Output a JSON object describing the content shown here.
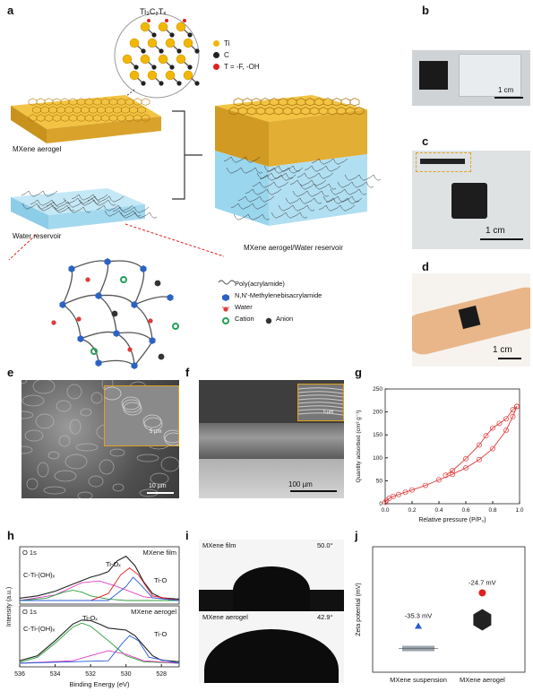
{
  "figure": {
    "panels": {
      "a": {
        "label": "a",
        "formula": "Ti₃C₂Tₓ",
        "legend_top": [
          {
            "text": "Ti",
            "color": "#f2b705"
          },
          {
            "text": "C",
            "color": "#222222"
          },
          {
            "text": "T = -F, -OH",
            "color": "#e02020"
          }
        ],
        "label_aerogel": "MXene aerogel",
        "label_reservoir": "Water reservoir",
        "label_composite": "MXene aerogel/Water reservoir",
        "legend_bottom": [
          {
            "text": "Poly(acrylamide)",
            "icon": "wavy-line-icon"
          },
          {
            "text": "N,N'-Methylenebisacrylamide",
            "icon": "blue-hexagon-icon"
          },
          {
            "text": "Water",
            "icon": "water-molecule-icon"
          },
          {
            "text": "Cation",
            "icon": "green-ring-icon"
          },
          {
            "text": "Anion",
            "icon": "black-circle-icon"
          }
        ]
      },
      "b": {
        "label": "b",
        "scale": "1 cm"
      },
      "c": {
        "label": "c",
        "scale": "1 cm"
      },
      "d": {
        "label": "d",
        "scale": "1 cm"
      },
      "e": {
        "label": "e",
        "scale_main": "10 µm",
        "scale_inset": "5 µm"
      },
      "f": {
        "label": "f",
        "scale_main": "100 µm",
        "scale_inset": "5 µm"
      },
      "g": {
        "label": "g"
      },
      "h": {
        "label": "h",
        "top": {
          "orbital": "O 1s",
          "sample": "MXene film",
          "peaks": [
            "C-Ti-(OH)ₓ",
            "Ti-Oₓ",
            "Ti-O"
          ]
        },
        "bottom": {
          "orbital": "O 1s",
          "sample": "MXene aerogel",
          "peaks": [
            "C-Ti-(OH)ₓ",
            "Ti-Oₓ",
            "Ti-O"
          ]
        }
      },
      "i": {
        "label": "i",
        "top": {
          "sample": "MXene film",
          "angle": "50.0°"
        },
        "bottom": {
          "sample": "MXene aerogel",
          "angle": "42.9°"
        }
      },
      "j": {
        "label": "j"
      }
    }
  },
  "chart_data": [
    {
      "panel": "g",
      "type": "line",
      "xlabel": "Relative pressure (P/P₀)",
      "ylabel": "Quantity adsorbed (cm³ g⁻¹)",
      "xlim": [
        0,
        1.0
      ],
      "ylim": [
        0,
        250
      ],
      "xticks": [
        "0.0",
        "0.2",
        "0.4",
        "0.6",
        "0.8",
        "1.0"
      ],
      "yticks": [
        "0",
        "50",
        "100",
        "150",
        "200",
        "250"
      ],
      "grid": false,
      "color": "#e03a3a",
      "series": [
        {
          "x": [
            0.0,
            0.01,
            0.03,
            0.06,
            0.1,
            0.15,
            0.2,
            0.3,
            0.4,
            0.5,
            0.6,
            0.7,
            0.8,
            0.9,
            0.95,
            0.98
          ],
          "y": [
            3,
            7,
            12,
            16,
            20,
            25,
            30,
            40,
            52,
            64,
            78,
            96,
            120,
            160,
            190,
            212
          ]
        },
        {
          "x": [
            0.98,
            0.95,
            0.9,
            0.85,
            0.8,
            0.75,
            0.7,
            0.6,
            0.5,
            0.45
          ],
          "y": [
            212,
            205,
            185,
            175,
            165,
            148,
            128,
            98,
            72,
            62
          ]
        }
      ]
    },
    {
      "panel": "h",
      "type": "line",
      "xlabel": "Binding Energy (eV)",
      "ylabel": "Intensity (a.u.)",
      "xlim": [
        536,
        527
      ],
      "xticks": [
        "536",
        "534",
        "532",
        "530",
        "528"
      ],
      "subplots": [
        {
          "sample": "MXene film",
          "series": [
            {
              "color": "#222222",
              "x": [
                536,
                535,
                534,
                533,
                532,
                531.5,
                531,
                530.5,
                530,
                529.5,
                529,
                528.5,
                528,
                527
              ],
              "y": [
                0.05,
                0.1,
                0.2,
                0.35,
                0.5,
                0.55,
                0.62,
                0.85,
                0.95,
                0.75,
                0.4,
                0.15,
                0.06,
                0.03
              ]
            },
            {
              "color": "#e040c0",
              "x": [
                536,
                534,
                532.5,
                531.5,
                530.5,
                529,
                527
              ],
              "y": [
                0.0,
                0.12,
                0.38,
                0.42,
                0.3,
                0.08,
                0.0
              ]
            },
            {
              "color": "#2a9d3a",
              "x": [
                536,
                534.5,
                533.5,
                533,
                532.5,
                532,
                531,
                530,
                527
              ],
              "y": [
                0.0,
                0.05,
                0.18,
                0.22,
                0.18,
                0.1,
                0.03,
                0.0,
                0.0
              ]
            },
            {
              "color": "#e02020",
              "x": [
                536,
                532,
                531,
                530.3,
                529.8,
                529.3,
                528.5,
                527
              ],
              "y": [
                0.0,
                0.0,
                0.15,
                0.55,
                0.7,
                0.55,
                0.1,
                0.0
              ]
            },
            {
              "color": "#2a5bd7",
              "x": [
                536,
                531,
                530,
                529.6,
                529.2,
                528.5,
                527
              ],
              "y": [
                0.0,
                0.0,
                0.3,
                0.5,
                0.35,
                0.06,
                0.0
              ]
            }
          ]
        },
        {
          "sample": "MXene aerogel",
          "series": [
            {
              "color": "#222222",
              "x": [
                536,
                535,
                534,
                533,
                532.5,
                532,
                531.5,
                531,
                530.5,
                530,
                529.5,
                529,
                528.5,
                528,
                527
              ],
              "y": [
                0.05,
                0.15,
                0.45,
                0.78,
                0.86,
                0.85,
                0.78,
                0.7,
                0.68,
                0.66,
                0.55,
                0.35,
                0.15,
                0.06,
                0.03
              ]
            },
            {
              "color": "#2a9d3a",
              "x": [
                536,
                535,
                534,
                533,
                532.5,
                532,
                531,
                530,
                529,
                527
              ],
              "y": [
                0.02,
                0.12,
                0.4,
                0.72,
                0.8,
                0.74,
                0.45,
                0.15,
                0.03,
                0.0
              ]
            },
            {
              "color": "#e040c0",
              "x": [
                536,
                533,
                532,
                531,
                530,
                529,
                527
              ],
              "y": [
                0.0,
                0.05,
                0.15,
                0.25,
                0.18,
                0.05,
                0.0
              ]
            },
            {
              "color": "#2a5bd7",
              "x": [
                536,
                531,
                530.2,
                529.8,
                529.3,
                528.7,
                527
              ],
              "y": [
                0.0,
                0.05,
                0.4,
                0.55,
                0.45,
                0.12,
                0.0
              ]
            }
          ]
        }
      ]
    },
    {
      "panel": "j",
      "type": "scatter",
      "ylabel": "Zeta potential (mV)",
      "categories": [
        "MXene suspension",
        "MXene aerogel"
      ],
      "values": [
        -35.3,
        -24.7
      ],
      "data_labels": [
        "-35.3 mV",
        "-24.7 mV"
      ],
      "colors": [
        "#2a5bd7",
        "#e02020"
      ],
      "ylim": [
        -50,
        -10
      ]
    }
  ]
}
